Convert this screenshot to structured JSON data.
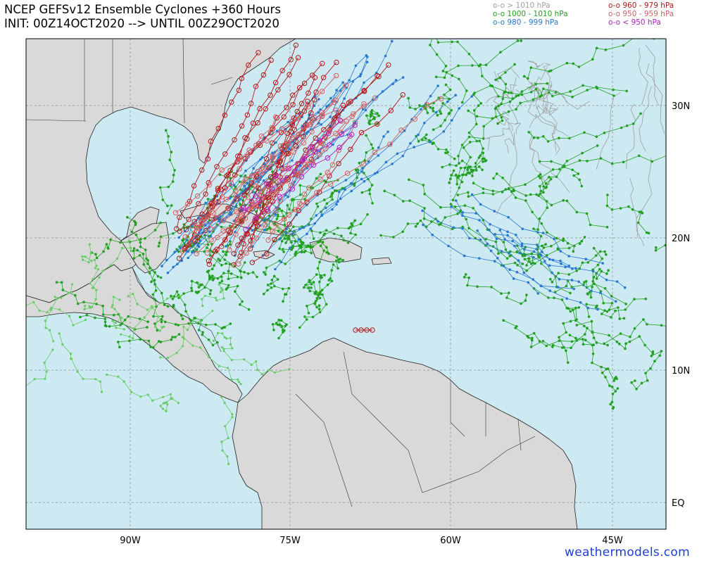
{
  "title": {
    "line1": "NCEP GEFSv12 Ensemble Cyclones +360 Hours",
    "line2": "INIT: 00Z14OCT2020 --> UNTIL 00Z29OCT2020"
  },
  "legend": {
    "left": [
      {
        "marker": "o-o",
        "label": "> 1010 hPa",
        "color": "#a0a0a0"
      },
      {
        "marker": "o-o",
        "label": "1000 - 1010 hPa",
        "color": "#22a022"
      },
      {
        "marker": "o-o",
        "label": "980 - 999 hPa",
        "color": "#2878d0"
      }
    ],
    "right": [
      {
        "marker": "o-o",
        "label": "960 - 979 hPa",
        "color": "#b01818"
      },
      {
        "marker": "o-o",
        "label": "950 - 959 hPa",
        "color": "#d06060"
      },
      {
        "marker": "o-o",
        "label": "< 950 hPa",
        "color": "#b020c0"
      }
    ]
  },
  "axes": {
    "lon_labels": [
      "90W",
      "75W",
      "60W",
      "45W"
    ],
    "lat_labels": [
      "30N",
      "20N",
      "10N",
      "EQ"
    ]
  },
  "colors": {
    "ocean": "#cde9f2",
    "land": "#d9d9d9",
    "coast": "#222222",
    "grid": "#8a8a8a",
    "gray_track": "#a0a0a0",
    "green_track": "#22a022",
    "lightgreen_track": "#66cc66",
    "blue_track": "#2878d0",
    "red_track": "#b01818",
    "salmon_track": "#d06060",
    "magenta_track": "#b020c0"
  },
  "watermark": "weathermodels.com"
}
